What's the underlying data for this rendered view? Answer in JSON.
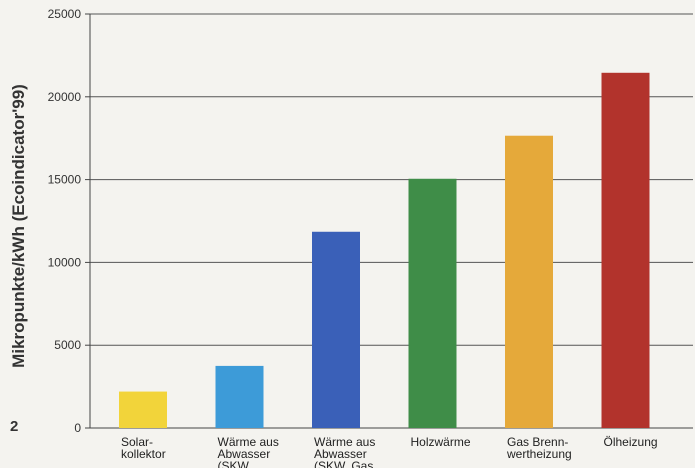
{
  "figure_number": "2",
  "chart_data": {
    "type": "bar",
    "title": "",
    "xlabel": "",
    "ylabel": "Mikropunkte/kWh (Ecoindicator'99)",
    "ylim": [
      0,
      25000
    ],
    "yticks": [
      0,
      5000,
      10000,
      15000,
      20000,
      25000
    ],
    "grid": true,
    "categories": [
      "Solar-\nkollektor",
      "Wärme aus\nAbwasser\n(SKW...",
      "Wärme aus\nAbwasser\n(SKW, Gas...",
      "Holzwärme",
      "Gas Brenn-\nwertheizung",
      "Ölheizung"
    ],
    "values": [
      2200,
      3750,
      11850,
      15050,
      17650,
      21450
    ],
    "colors": [
      "#f2d43a",
      "#3d9bd8",
      "#3a60b8",
      "#3f8d48",
      "#e5a93a",
      "#b2332c"
    ]
  }
}
